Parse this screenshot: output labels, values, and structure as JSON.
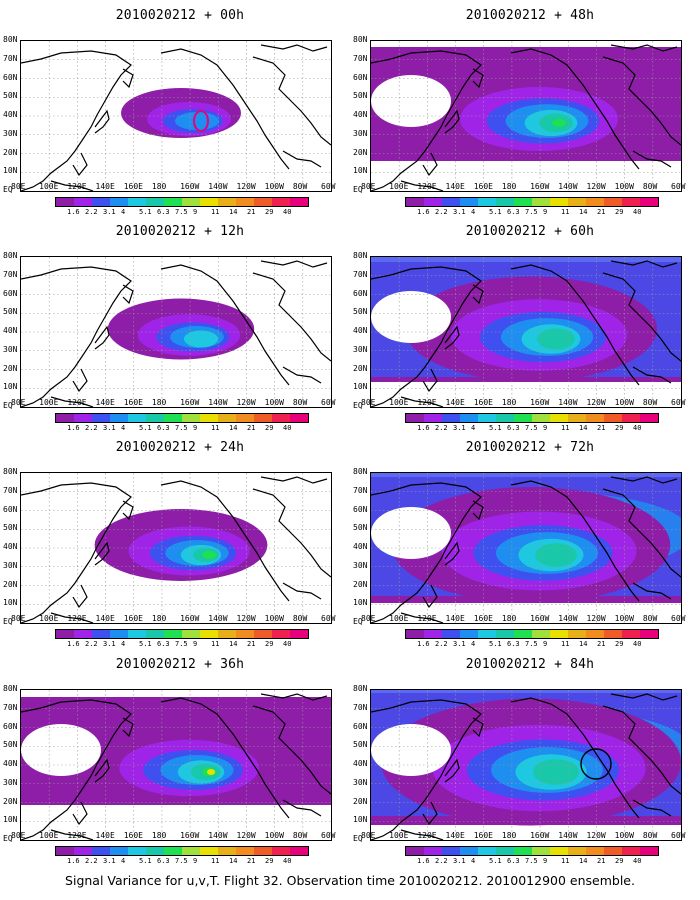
{
  "panels": [
    {
      "title": "2010020212 + 00h",
      "level": 0
    },
    {
      "title": "2010020212 + 48h",
      "level": 4
    },
    {
      "title": "2010020212 + 12h",
      "level": 1
    },
    {
      "title": "2010020212 + 60h",
      "level": 5
    },
    {
      "title": "2010020212 + 24h",
      "level": 2
    },
    {
      "title": "2010020212 + 72h",
      "level": 6
    },
    {
      "title": "2010020212 + 36h",
      "level": 3
    },
    {
      "title": "2010020212 + 84h",
      "level": 7
    }
  ],
  "lat_labels": [
    "80N",
    "70N",
    "60N",
    "50N",
    "40N",
    "30N",
    "20N",
    "10N",
    "EQ"
  ],
  "lon_labels": [
    "80E",
    "100E",
    "120E",
    "140E",
    "160E",
    "180",
    "160W",
    "140W",
    "120W",
    "100W",
    "80W",
    "60W"
  ],
  "colorbar": {
    "colors": [
      "#8e1ea8",
      "#a024e8",
      "#3f50f0",
      "#1e8ef0",
      "#1ec8e0",
      "#18c8a8",
      "#1ee050",
      "#a0e03c",
      "#e8e000",
      "#e8b018",
      "#f08c20",
      "#f05c28",
      "#f02050",
      "#e8007c"
    ],
    "labels": [
      "1.6",
      "2.2",
      "3.1",
      "4",
      "5.1",
      "6.3",
      "7.5",
      "9",
      "11",
      "14",
      "21",
      "29",
      "40"
    ]
  },
  "caption": "Signal Variance for u,v,T. Flight 32. Observation time 2010020212. 2010012900 ensemble."
}
